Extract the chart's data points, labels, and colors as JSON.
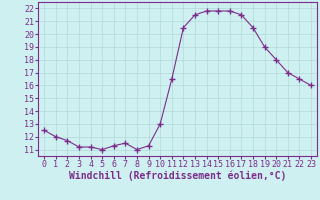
{
  "x": [
    0,
    1,
    2,
    3,
    4,
    5,
    6,
    7,
    8,
    9,
    10,
    11,
    12,
    13,
    14,
    15,
    16,
    17,
    18,
    19,
    20,
    21,
    22,
    23
  ],
  "y": [
    12.5,
    12.0,
    11.7,
    11.2,
    11.2,
    11.0,
    11.3,
    11.5,
    11.0,
    11.3,
    13.0,
    16.5,
    20.5,
    21.5,
    21.8,
    21.8,
    21.8,
    21.5,
    20.5,
    19.0,
    18.0,
    17.0,
    16.5,
    16.0
  ],
  "line_color": "#7b2d8b",
  "marker": "+",
  "marker_size": 4,
  "marker_lw": 1.0,
  "bg_color": "#cff0f0",
  "grid_color": "#b0d8d8",
  "xlabel": "Windchill (Refroidissement éolien,°C)",
  "xlabel_fontsize": 7,
  "tick_fontsize": 6,
  "tick_color": "#7b2d8b",
  "ylim": [
    10.5,
    22.5
  ],
  "yticks": [
    11,
    12,
    13,
    14,
    15,
    16,
    17,
    18,
    19,
    20,
    21,
    22
  ],
  "xlim": [
    -0.5,
    23.5
  ],
  "xticks": [
    0,
    1,
    2,
    3,
    4,
    5,
    6,
    7,
    8,
    9,
    10,
    11,
    12,
    13,
    14,
    15,
    16,
    17,
    18,
    19,
    20,
    21,
    22,
    23
  ]
}
